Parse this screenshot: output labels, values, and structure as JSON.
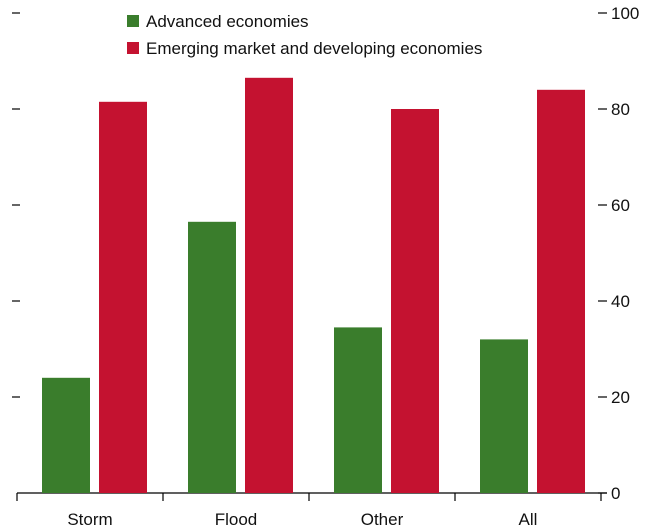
{
  "chart_data": {
    "type": "bar",
    "title": "",
    "xlabel": "",
    "ylabel": "",
    "categories": [
      "Storm",
      "Flood",
      "Other",
      "All"
    ],
    "series": [
      {
        "name": "Advanced economies",
        "color": "#3a7d2c",
        "values": [
          24,
          56.5,
          34.5,
          32
        ]
      },
      {
        "name": "Emerging market and developing economies",
        "color": "#c41230",
        "values": [
          81.5,
          86.5,
          80,
          84
        ]
      }
    ],
    "ylim": [
      0,
      100
    ],
    "yticks": [
      0,
      20,
      40,
      60,
      80,
      100
    ],
    "y_axis_side": "right",
    "grid": false,
    "legend_position": "top-center"
  }
}
